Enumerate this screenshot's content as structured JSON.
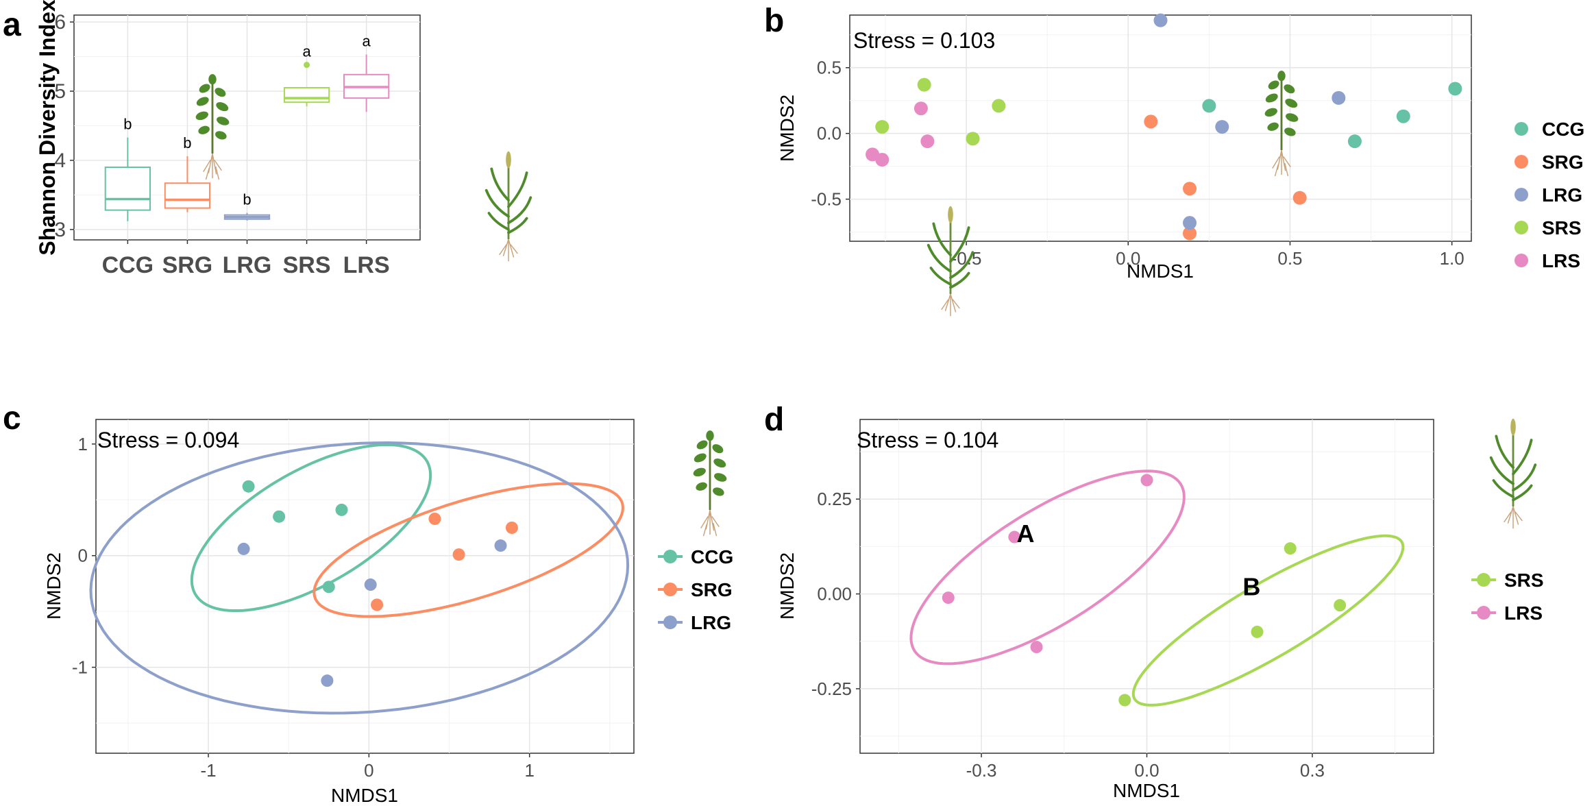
{
  "figure": {
    "colors": {
      "CCG": "#66c2a5",
      "SRG": "#fc8d62",
      "LRG": "#8da0cb",
      "SRS": "#a6d854",
      "LRS": "#e78ac3"
    },
    "icons": {
      "grass_plant": "grass-plant-icon",
      "legume_plant": "legume-plant-icon"
    }
  },
  "chart_data": [
    {
      "panel": "a",
      "type": "box",
      "ylabel": "Shannon Diversity Index",
      "xlabel": "",
      "ylim": [
        2.85,
        6.1
      ],
      "yticks": [
        3,
        4,
        5,
        6
      ],
      "categories": [
        "CCG",
        "SRG",
        "LRG",
        "SRS",
        "LRS"
      ],
      "boxes": [
        {
          "name": "CCG",
          "min": 3.12,
          "q1": 3.28,
          "median": 3.44,
          "q3": 3.9,
          "max": 4.33,
          "outliers": [],
          "letter": "b"
        },
        {
          "name": "SRG",
          "min": 3.25,
          "q1": 3.31,
          "median": 3.43,
          "q3": 3.67,
          "max": 4.06,
          "outliers": [],
          "letter": "b"
        },
        {
          "name": "LRG",
          "min": 3.13,
          "q1": 3.15,
          "median": 3.18,
          "q3": 3.21,
          "max": 3.24,
          "outliers": [],
          "letter": "b"
        },
        {
          "name": "SRS",
          "min": 4.78,
          "q1": 4.84,
          "median": 4.9,
          "q3": 5.05,
          "max": 5.05,
          "outliers": [
            5.38
          ],
          "letter": "a"
        },
        {
          "name": "LRS",
          "min": 4.7,
          "q1": 4.9,
          "median": 5.06,
          "q3": 5.24,
          "max": 5.53,
          "outliers": [],
          "letter": "a"
        }
      ]
    },
    {
      "panel": "b",
      "type": "scatter",
      "stress_label": "Stress = 0.103",
      "xlabel": "NMDS1",
      "ylabel": "NMDS2",
      "xlim": [
        -0.86,
        1.06
      ],
      "ylim": [
        -0.82,
        0.9
      ],
      "xticks": [
        -0.5,
        0.0,
        0.5,
        1.0
      ],
      "xtick_labels": [
        "-0.5",
        "0.0",
        "0.5",
        "1.0"
      ],
      "yticks": [
        -0.5,
        0.0,
        0.5
      ],
      "ytick_labels": [
        "-0.5",
        "0.0",
        "0.5"
      ],
      "legend": [
        "CCG",
        "SRG",
        "LRG",
        "SRS",
        "LRS"
      ],
      "series": [
        {
          "name": "CCG",
          "points": [
            [
              0.25,
              0.21
            ],
            [
              0.7,
              -0.06
            ],
            [
              0.85,
              0.13
            ],
            [
              1.01,
              0.34
            ]
          ]
        },
        {
          "name": "SRG",
          "points": [
            [
              0.07,
              0.09
            ],
            [
              0.19,
              -0.42
            ],
            [
              0.19,
              -0.76
            ],
            [
              0.53,
              -0.49
            ]
          ]
        },
        {
          "name": "LRG",
          "points": [
            [
              0.1,
              0.86
            ],
            [
              0.29,
              0.05
            ],
            [
              0.19,
              -0.68
            ],
            [
              0.65,
              0.27
            ]
          ]
        },
        {
          "name": "SRS",
          "points": [
            [
              -0.76,
              0.05
            ],
            [
              -0.63,
              0.37
            ],
            [
              -0.48,
              -0.04
            ],
            [
              -0.4,
              0.21
            ]
          ]
        },
        {
          "name": "LRS",
          "points": [
            [
              -0.79,
              -0.16
            ],
            [
              -0.76,
              -0.2
            ],
            [
              -0.64,
              0.19
            ],
            [
              -0.62,
              -0.06
            ]
          ]
        }
      ]
    },
    {
      "panel": "c",
      "type": "scatter",
      "stress_label": "Stress = 0.094",
      "xlabel": "NMDS1",
      "ylabel": "NMDS2",
      "xlim": [
        -1.7,
        1.65
      ],
      "ylim": [
        -1.77,
        1.22
      ],
      "xticks": [
        -1,
        0,
        1
      ],
      "xtick_labels": [
        "-1",
        "0",
        "1"
      ],
      "yticks": [
        -1,
        0,
        1
      ],
      "ytick_labels": [
        "-1",
        "0",
        "1"
      ],
      "legend": [
        "CCG",
        "SRG",
        "LRG"
      ],
      "series": [
        {
          "name": "CCG",
          "points": [
            [
              -0.75,
              0.62
            ],
            [
              -0.56,
              0.35
            ],
            [
              -0.17,
              0.41
            ],
            [
              -0.25,
              -0.28
            ]
          ]
        },
        {
          "name": "SRG",
          "points": [
            [
              0.41,
              0.33
            ],
            [
              0.56,
              0.01
            ],
            [
              0.89,
              0.25
            ],
            [
              0.05,
              -0.44
            ]
          ]
        },
        {
          "name": "LRG",
          "points": [
            [
              -0.78,
              0.06
            ],
            [
              0.01,
              -0.26
            ],
            [
              -0.26,
              -1.12
            ],
            [
              0.82,
              0.09
            ]
          ]
        }
      ],
      "ellipses": [
        {
          "name": "CCG",
          "cx": -0.36,
          "cy": 0.25,
          "rx": 0.95,
          "ry": 0.45,
          "angle_deg": 45
        },
        {
          "name": "SRG",
          "cx": 0.62,
          "cy": 0.05,
          "rx": 1.05,
          "ry": 0.42,
          "angle_deg": 26
        },
        {
          "name": "LRG",
          "cx": -0.06,
          "cy": -0.2,
          "rx": 1.68,
          "ry": 1.2,
          "angle_deg": 8
        }
      ]
    },
    {
      "panel": "d",
      "type": "scatter",
      "stress_label": "Stress = 0.104",
      "xlabel": "NMDS1",
      "ylabel": "NMDS2",
      "xlim": [
        -0.52,
        0.52
      ],
      "ylim": [
        -0.42,
        0.46
      ],
      "xticks": [
        -0.3,
        0.0,
        0.3
      ],
      "xtick_labels": [
        "-0.3",
        "0.0",
        "0.3"
      ],
      "yticks": [
        -0.25,
        0.0,
        0.25
      ],
      "ytick_labels": [
        "-0.25",
        "0.00",
        "0.25"
      ],
      "legend": [
        "SRS",
        "LRS"
      ],
      "series": [
        {
          "name": "SRS",
          "points": [
            [
              -0.04,
              -0.28
            ],
            [
              0.2,
              -0.1
            ],
            [
              0.26,
              0.12
            ],
            [
              0.35,
              -0.03
            ]
          ]
        },
        {
          "name": "LRS",
          "points": [
            [
              -0.36,
              -0.01
            ],
            [
              -0.24,
              0.15
            ],
            [
              -0.2,
              -0.14
            ],
            [
              0.0,
              0.3
            ]
          ]
        }
      ],
      "ellipses": [
        {
          "name": "SRS",
          "cx": 0.22,
          "cy": -0.07,
          "rx": 0.32,
          "ry": 0.085,
          "angle_deg": 42
        },
        {
          "name": "LRS",
          "cx": -0.18,
          "cy": 0.07,
          "rx": 0.33,
          "ry": 0.13,
          "angle_deg": 46
        }
      ],
      "group_labels": [
        {
          "text": "A",
          "x": -0.22,
          "y": 0.16
        },
        {
          "text": "B",
          "x": 0.19,
          "y": 0.02
        }
      ]
    }
  ]
}
